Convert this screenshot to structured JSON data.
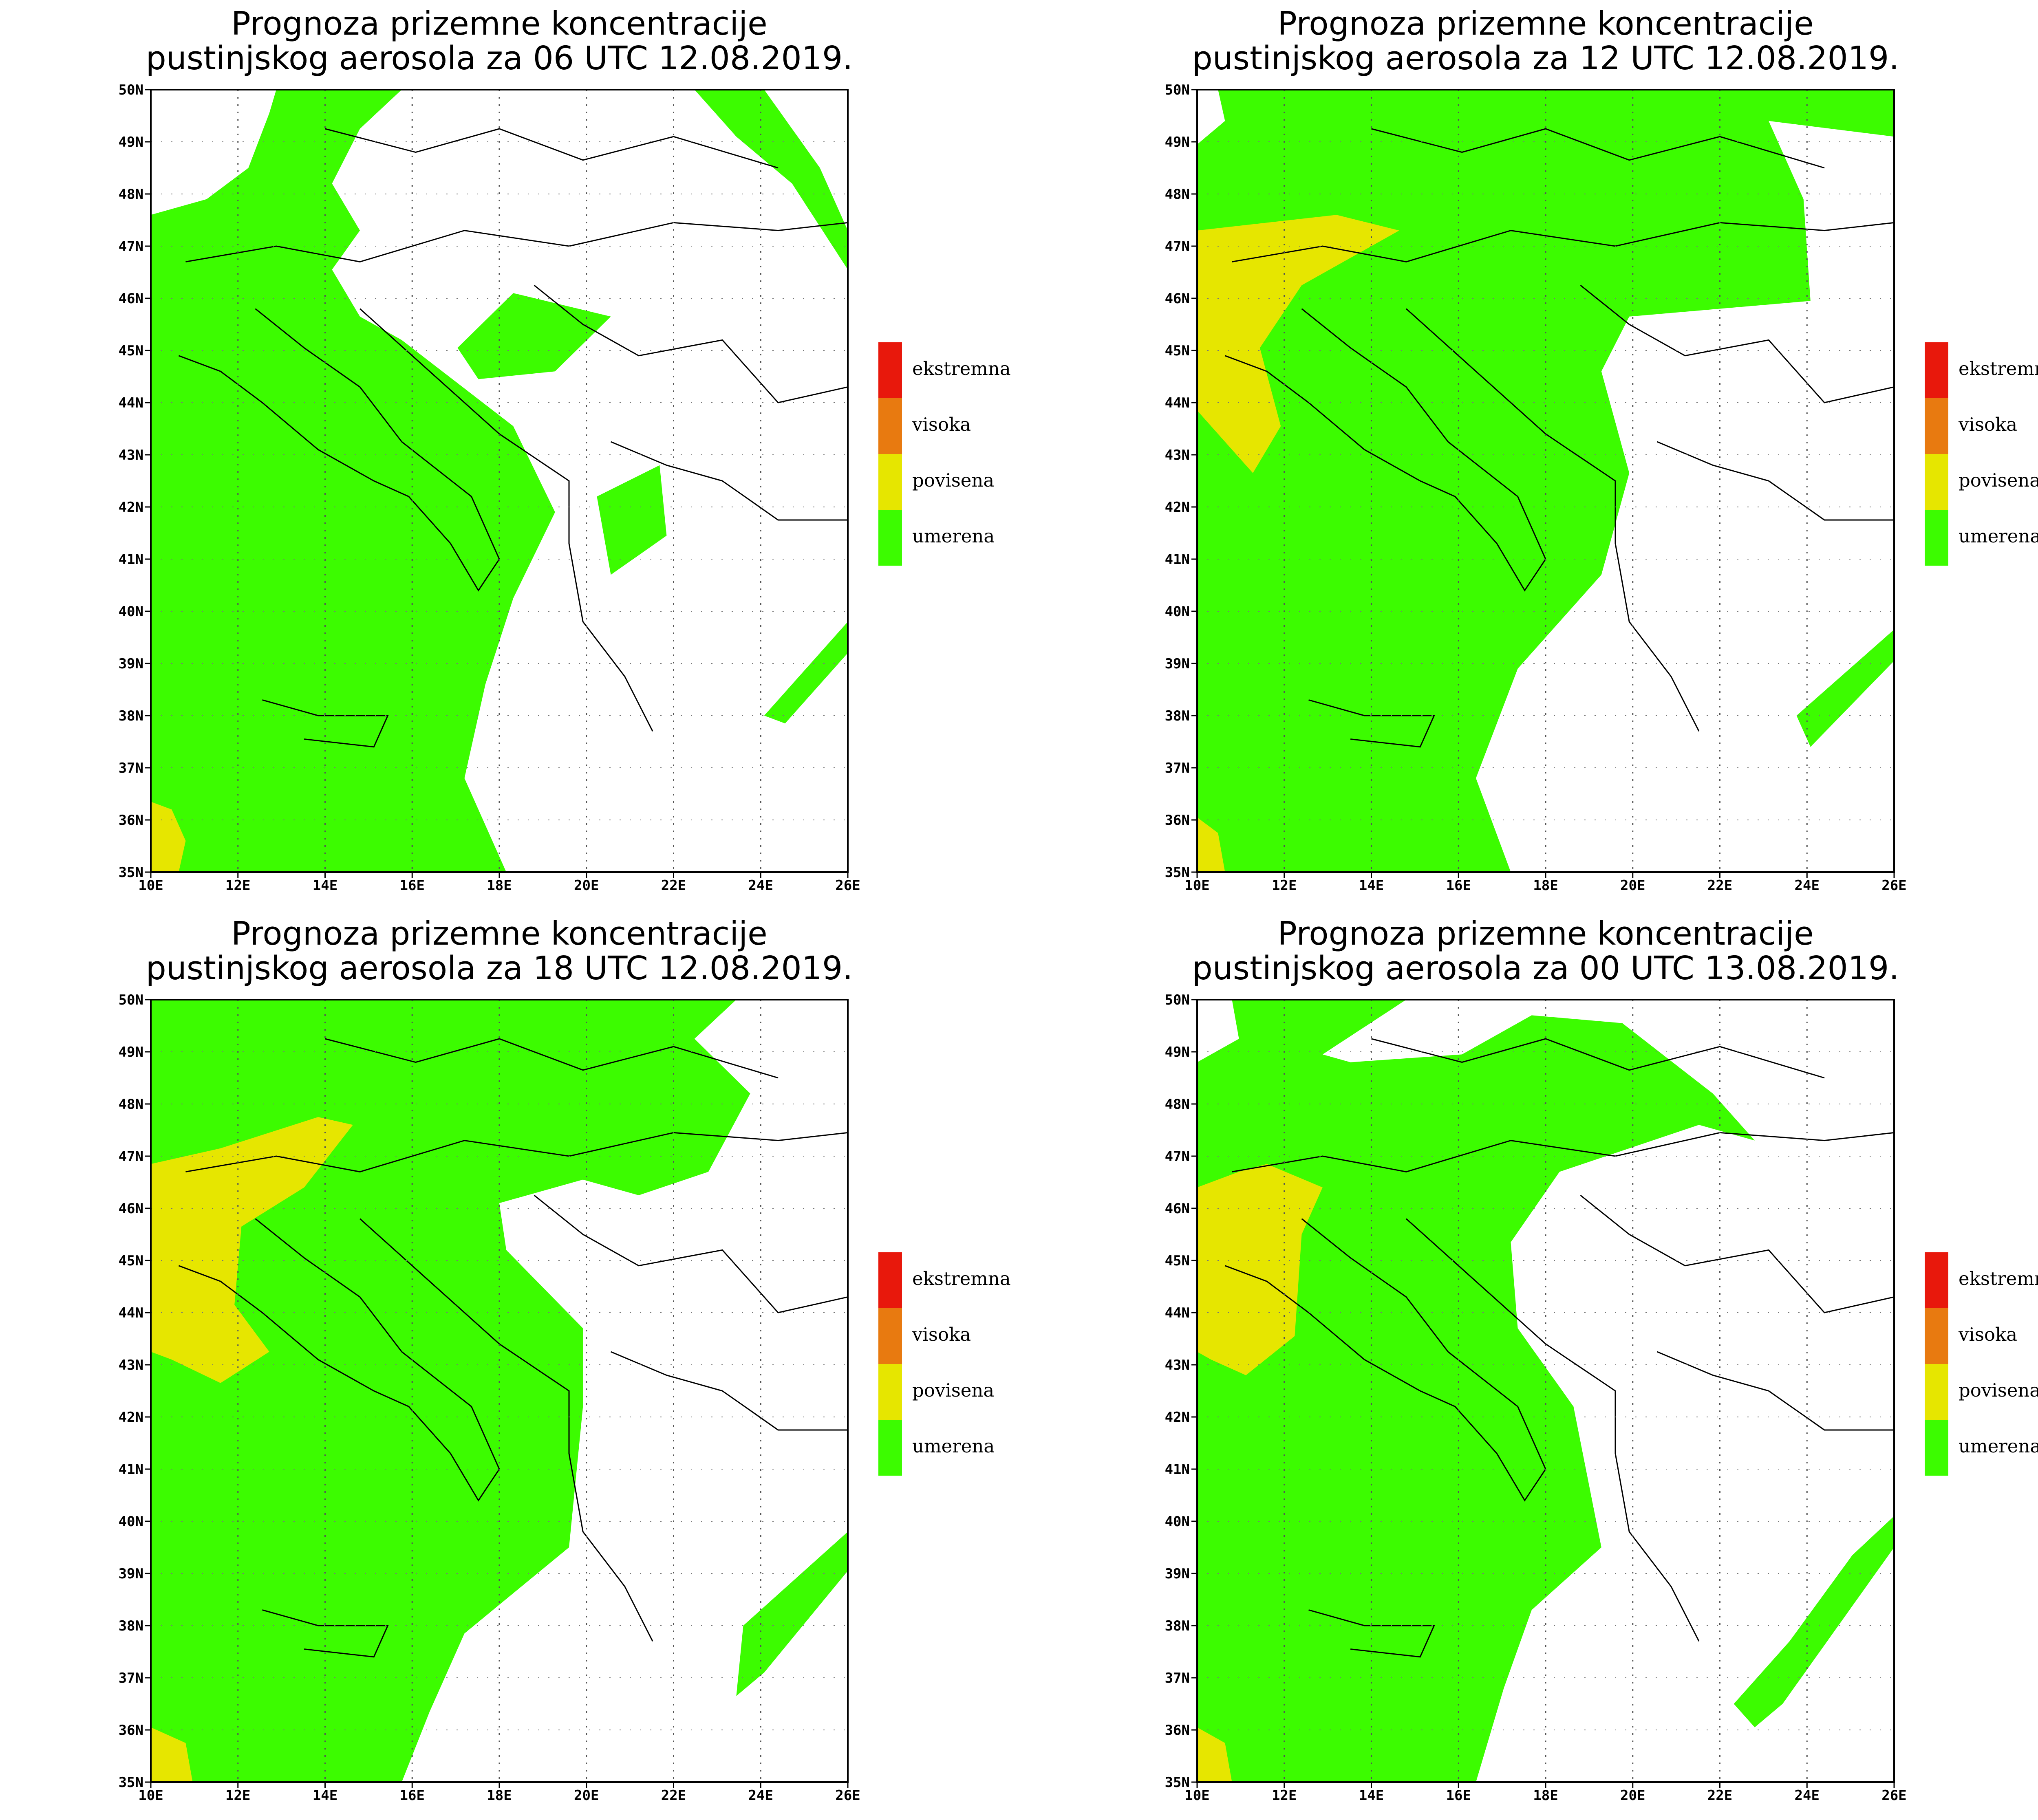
{
  "panels": [
    {
      "title_line1": "Prognoza prizemne koncentracije",
      "title_line2": "pustinjskog aerosola za 06 UTC 12.08.2019."
    },
    {
      "title_line1": "Prognoza prizemne koncentracije",
      "title_line2": "pustinjskog aerosola za 12 UTC 12.08.2019."
    },
    {
      "title_line1": "Prognoza prizemne koncentracije",
      "title_line2": "pustinjskog aerosola za 18 UTC 12.08.2019."
    },
    {
      "title_line1": "Prognoza prizemne koncentracije",
      "title_line2": "pustinjskog aerosola za 00 UTC 13.08.2019."
    }
  ],
  "axes": {
    "lat_labels": [
      "50N",
      "49N",
      "48N",
      "47N",
      "46N",
      "45N",
      "44N",
      "43N",
      "42N",
      "41N",
      "40N",
      "39N",
      "38N",
      "37N",
      "36N",
      "35N"
    ],
    "lon_labels": [
      "10E",
      "12E",
      "14E",
      "16E",
      "18E",
      "20E",
      "22E",
      "24E",
      "26E"
    ]
  },
  "legend": [
    {
      "label": "ekstremna",
      "color": "#e8180c"
    },
    {
      "label": "visoka",
      "color": "#e87a10"
    },
    {
      "label": "povisena",
      "color": "#e6e600"
    },
    {
      "label": "umerena",
      "color": "#3cfc00"
    }
  ],
  "colors": {
    "umerena": "#3cfc00",
    "povisena": "#e6e600",
    "background": "#ffffff",
    "border": "#000000"
  }
}
